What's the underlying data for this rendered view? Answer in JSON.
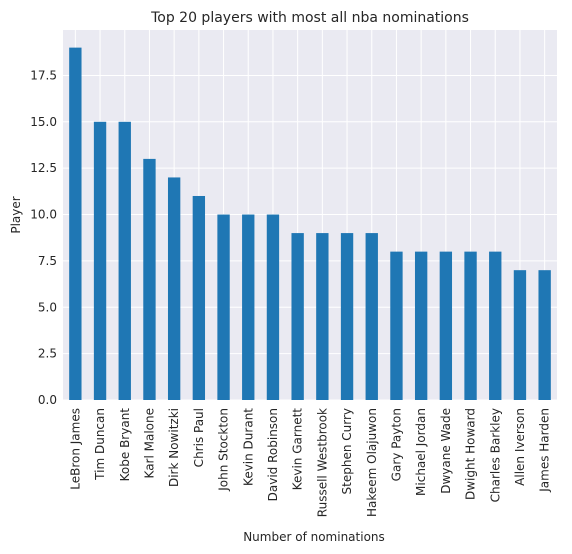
{
  "chart_data": {
    "type": "bar",
    "title": "Top 20 players with most all nba nominations",
    "xlabel": "Number of nominations",
    "ylabel": "Player",
    "categories": [
      "LeBron James",
      "Tim Duncan",
      "Kobe Bryant",
      "Karl Malone",
      "Dirk Nowitzki",
      "Chris Paul",
      "John Stockton",
      "Kevin Durant",
      "David Robinson",
      "Kevin Garnett",
      "Russell Westbrook",
      "Stephen Curry",
      "Hakeem Olajuwon",
      "Gary Payton",
      "Michael Jordan",
      "Dwyane Wade",
      "Dwight Howard",
      "Charles Barkley",
      "Allen Iverson",
      "James Harden"
    ],
    "values": [
      19,
      15,
      15,
      13,
      12,
      11,
      10,
      10,
      10,
      9,
      9,
      9,
      9,
      8,
      8,
      8,
      8,
      8,
      7,
      7
    ],
    "yticks": [
      "0.0",
      "2.5",
      "5.0",
      "7.5",
      "10.0",
      "12.5",
      "15.0",
      "17.5"
    ],
    "ylim": [
      0,
      19.95
    ],
    "bar_color": "#1f77b4",
    "background_color": "#eaeaf2",
    "grid_color": "#ffffff",
    "grid": true
  }
}
